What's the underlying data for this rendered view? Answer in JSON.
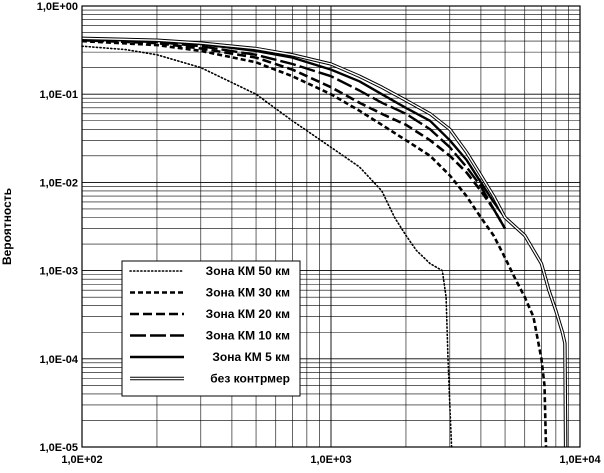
{
  "chart_data": {
    "type": "line",
    "title": "",
    "xlabel": "",
    "ylabel": "Вероятность",
    "xscale": "log",
    "yscale": "log",
    "xlim": [
      100,
      10000
    ],
    "ylim": [
      1e-05,
      1
    ],
    "grid": true,
    "legend_position": "bottom-left",
    "x_tick_labels": [
      "1,0E+02",
      "1,0E+03",
      "1,0E+04"
    ],
    "y_tick_labels": [
      "1,0E+00",
      "1,0E-01",
      "1,0E-02",
      "1,0E-03",
      "1,0E-04",
      "1,0E-05"
    ],
    "series": [
      {
        "name": "Зона КМ 50 км",
        "style": "dotted",
        "x": [
          100,
          150,
          200,
          300,
          500,
          700,
          1000,
          1300,
          1600,
          1800,
          2000,
          2200,
          2500,
          2800,
          2900,
          2950,
          3000,
          3050
        ],
        "y": [
          0.35,
          0.32,
          0.28,
          0.2,
          0.1,
          0.05,
          0.025,
          0.015,
          0.008,
          0.004,
          0.0025,
          0.0017,
          0.0012,
          0.001,
          0.0005,
          0.0001,
          3e-05,
          1e-05
        ]
      },
      {
        "name": "Зона КМ 30 км",
        "style": "dashed-short",
        "x": [
          100,
          200,
          300,
          500,
          700,
          1000,
          1300,
          1600,
          2000,
          2500,
          3000,
          3500,
          4000,
          4500,
          5000,
          5500,
          6000,
          6500,
          7000,
          7200,
          7300
        ],
        "y": [
          0.4,
          0.36,
          0.31,
          0.23,
          0.16,
          0.1,
          0.065,
          0.045,
          0.03,
          0.02,
          0.012,
          0.007,
          0.004,
          0.0025,
          0.0014,
          0.0008,
          0.0005,
          0.0003,
          0.0001,
          5e-05,
          1e-05
        ]
      },
      {
        "name": "Зона КМ 20 км",
        "style": "dashed-medium",
        "x": [
          100,
          200,
          300,
          500,
          700,
          1000,
          1300,
          1600,
          2000,
          2500,
          3000,
          3500,
          4000,
          4500,
          5000
        ],
        "y": [
          0.41,
          0.38,
          0.33,
          0.26,
          0.19,
          0.12,
          0.08,
          0.06,
          0.045,
          0.03,
          0.02,
          0.013,
          0.008,
          0.005,
          0.003
        ]
      },
      {
        "name": "Зона КМ 10 км",
        "style": "dashed-long",
        "x": [
          100,
          200,
          300,
          500,
          700,
          1000,
          1300,
          1600,
          2000,
          2500,
          3000,
          3500,
          4000,
          4500,
          5000
        ],
        "y": [
          0.42,
          0.39,
          0.35,
          0.28,
          0.22,
          0.16,
          0.11,
          0.08,
          0.06,
          0.04,
          0.025,
          0.015,
          0.009,
          0.005,
          0.003
        ]
      },
      {
        "name": "Зона КМ 5 км",
        "style": "solid",
        "x": [
          100,
          200,
          300,
          500,
          700,
          1000,
          1300,
          1600,
          2000,
          2500,
          3000,
          3500,
          4000,
          4500,
          5000,
          6000,
          7000,
          7500,
          8000,
          8500,
          8700,
          8750,
          8800
        ],
        "y": [
          0.42,
          0.4,
          0.37,
          0.31,
          0.26,
          0.19,
          0.14,
          0.1,
          0.07,
          0.05,
          0.03,
          0.018,
          0.01,
          0.006,
          0.004,
          0.0025,
          0.0012,
          0.0006,
          0.00035,
          0.0002,
          0.00015,
          5e-05,
          1e-05
        ]
      },
      {
        "name": "без контрмер",
        "style": "double",
        "x": [
          100,
          200,
          300,
          500,
          700,
          1000,
          1300,
          1600,
          2000,
          2500,
          3000,
          3500,
          4000,
          4500,
          5000,
          6000,
          7000,
          7500,
          8000,
          8500,
          8700,
          8750
        ],
        "y": [
          0.43,
          0.41,
          0.38,
          0.33,
          0.28,
          0.22,
          0.16,
          0.12,
          0.085,
          0.06,
          0.04,
          0.022,
          0.012,
          0.007,
          0.004,
          0.0025,
          0.0012,
          0.0006,
          0.00035,
          0.0002,
          0.00015,
          1e-05
        ]
      }
    ]
  }
}
